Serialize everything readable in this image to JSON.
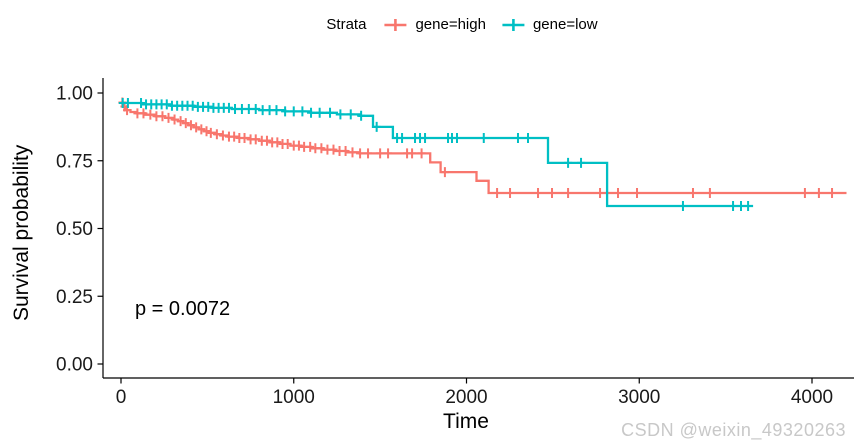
{
  "watermark": "CSDN @weixin_49320263",
  "legend": {
    "title": "Strata",
    "items": [
      {
        "label": "gene=high",
        "color": "#F8766D"
      },
      {
        "label": "gene=low",
        "color": "#00BFC4"
      }
    ]
  },
  "annotations": {
    "p_value": "p = 0.0072"
  },
  "chart_data": {
    "type": "line",
    "subtype": "kaplan-meier-survival-step",
    "title": "",
    "xlabel": "Time",
    "ylabel": "Survival probability",
    "xlim": [
      0,
      4200
    ],
    "ylim": [
      0,
      1
    ],
    "x_ticks": [
      0,
      1000,
      2000,
      3000,
      4000
    ],
    "y_ticks": [
      0,
      0.25,
      0.5,
      0.75,
      1
    ],
    "y_tick_labels": [
      "0.00",
      "0.25",
      "0.50",
      "0.75",
      "1.00"
    ],
    "grid": false,
    "legend_position": "top",
    "p_value_text": "p = 0.0072",
    "axis_color": "#000000",
    "tick_label_color": "#1a1a1a",
    "series": [
      {
        "name": "gene=high",
        "color": "#F8766D",
        "steps": [
          [
            0,
            0.965
          ],
          [
            10,
            0.95
          ],
          [
            25,
            0.937
          ],
          [
            55,
            0.93
          ],
          [
            90,
            0.925
          ],
          [
            140,
            0.92
          ],
          [
            200,
            0.914
          ],
          [
            255,
            0.908
          ],
          [
            300,
            0.902
          ],
          [
            330,
            0.896
          ],
          [
            360,
            0.889
          ],
          [
            390,
            0.881
          ],
          [
            420,
            0.873
          ],
          [
            450,
            0.866
          ],
          [
            480,
            0.859
          ],
          [
            510,
            0.853
          ],
          [
            545,
            0.848
          ],
          [
            580,
            0.843
          ],
          [
            620,
            0.839
          ],
          [
            680,
            0.834
          ],
          [
            740,
            0.829
          ],
          [
            800,
            0.824
          ],
          [
            860,
            0.818
          ],
          [
            920,
            0.812
          ],
          [
            980,
            0.806
          ],
          [
            1040,
            0.801
          ],
          [
            1100,
            0.796
          ],
          [
            1170,
            0.791
          ],
          [
            1240,
            0.786
          ],
          [
            1310,
            0.781
          ],
          [
            1380,
            0.777
          ],
          [
            1790,
            0.744
          ],
          [
            1850,
            0.708
          ],
          [
            2058,
            0.676
          ],
          [
            2128,
            0.631
          ],
          [
            4200,
            0.631
          ]
        ],
        "censor_times": [
          8,
          20,
          35,
          95,
          130,
          170,
          205,
          240,
          275,
          310,
          345,
          375,
          405,
          435,
          465,
          495,
          520,
          555,
          590,
          625,
          655,
          685,
          715,
          750,
          780,
          815,
          845,
          875,
          905,
          935,
          965,
          1000,
          1030,
          1060,
          1095,
          1125,
          1160,
          1195,
          1230,
          1265,
          1300,
          1340,
          1384,
          1430,
          1500,
          1546,
          1656,
          1685,
          1740,
          1875,
          2177,
          2252,
          2414,
          2495,
          2588,
          2773,
          2877,
          2987,
          3311,
          3409,
          3959,
          4040,
          4116
        ]
      },
      {
        "name": "gene=low",
        "color": "#00BFC4",
        "steps": [
          [
            0,
            0.963
          ],
          [
            120,
            0.958
          ],
          [
            290,
            0.953
          ],
          [
            420,
            0.949
          ],
          [
            530,
            0.945
          ],
          [
            640,
            0.941
          ],
          [
            800,
            0.937
          ],
          [
            950,
            0.932
          ],
          [
            1100,
            0.927
          ],
          [
            1250,
            0.921
          ],
          [
            1380,
            0.916
          ],
          [
            1459,
            0.875
          ],
          [
            1574,
            0.834
          ],
          [
            2472,
            0.742
          ],
          [
            2814,
            0.583
          ],
          [
            3659,
            0.583
          ]
        ],
        "censor_times": [
          10,
          40,
          116,
          145,
          175,
          205,
          235,
          265,
          295,
          325,
          355,
          385,
          415,
          445,
          475,
          505,
          535,
          565,
          595,
          625,
          660,
          700,
          740,
          780,
          820,
          860,
          900,
          950,
          1000,
          1050,
          1100,
          1150,
          1210,
          1270,
          1330,
          1390,
          1480,
          1598,
          1627,
          1702,
          1731,
          1760,
          1893,
          1916,
          1945,
          2100,
          2298,
          2356,
          2588,
          2663,
          3253,
          3543,
          3589,
          3630
        ]
      }
    ]
  }
}
